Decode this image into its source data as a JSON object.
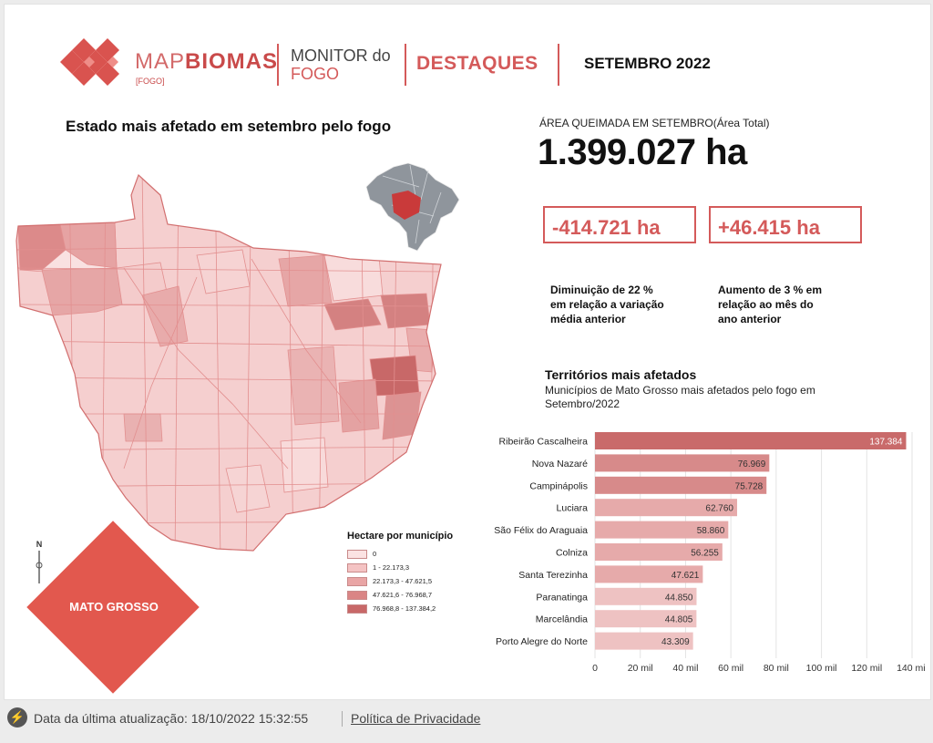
{
  "header": {
    "brand_light": "MAP",
    "brand_bold": "BIOMAS",
    "brand_sub": "[FOGO]",
    "monitor_line1": "MONITOR do",
    "monitor_line2": "FOGO",
    "section": "DESTAQUES",
    "period": "SETEMBRO 2022"
  },
  "map": {
    "title": "Estado mais afetado em setembro pelo fogo",
    "state_label": "MATO GROSSO",
    "north_symbol": "N",
    "legend": {
      "title": "Hectare por município",
      "items": [
        {
          "label": "0",
          "color": "#fbe3e3"
        },
        {
          "label": "1 - 22.173,3",
          "color": "#f4c3c3"
        },
        {
          "label": "22.173,3 - 47.621,5",
          "color": "#e9a5a5"
        },
        {
          "label": "47.621,6 - 76.968,7",
          "color": "#da8585"
        },
        {
          "label": "76.968,8 - 137.384,2",
          "color": "#c86868"
        }
      ]
    }
  },
  "summary": {
    "area_label": "ÁREA QUEIMADA EM SETEMBRO(Área Total)",
    "area_value": "1.399.027 ha",
    "decrease_value": "-414.721 ha",
    "increase_value": "+46.415 ha",
    "decrease_desc": [
      "Diminuição de 22 %",
      "em relação a variação",
      "média anterior"
    ],
    "increase_desc": [
      "Aumento de 3 % em",
      "relação ao mês do",
      "ano anterior"
    ]
  },
  "territories": {
    "title": "Territórios mais afetados",
    "subtitle": "Municípios de Mato Grosso mais afetados pelo fogo em Setembro/2022"
  },
  "chart_data": {
    "type": "bar",
    "orientation": "horizontal",
    "categories": [
      "Ribeirão Cascalheira",
      "Nova Nazaré",
      "Campinápolis",
      "Luciara",
      "São Félix do Araguaia",
      "Colniza",
      "Santa Terezinha",
      "Paranatinga",
      "Marcelândia",
      "Porto Alegre do Norte"
    ],
    "values": [
      137384,
      76969,
      75728,
      62760,
      58860,
      56255,
      47621,
      44850,
      44805,
      43309
    ],
    "value_labels": [
      "137.384",
      "76.969",
      "75.728",
      "62.760",
      "58.860",
      "56.255",
      "47.621",
      "44.850",
      "44.805",
      "43.309"
    ],
    "colors": [
      "#c96a6a",
      "#d78a8a",
      "#d78a8a",
      "#e6aaaa",
      "#e6aaaa",
      "#e6aaaa",
      "#e6aaaa",
      "#eec2c2",
      "#eec2c2",
      "#eec2c2"
    ],
    "xticks": [
      0,
      20000,
      40000,
      60000,
      80000,
      100000,
      120000,
      140000
    ],
    "xtick_labels": [
      "0",
      "20 mil",
      "40 mil",
      "60 mil",
      "80 mil",
      "100 mil",
      "120 mil",
      "140 mil"
    ],
    "xlim": [
      0,
      140000
    ],
    "grid": true
  },
  "footer": {
    "update_text": "Data da última atualização: 18/10/2022 15:32:55",
    "privacy_link": "Política de Privacidade",
    "icon": "lightning-icon"
  },
  "colors": {
    "accent": "#d45a5a",
    "diamond": "#e2584e"
  }
}
